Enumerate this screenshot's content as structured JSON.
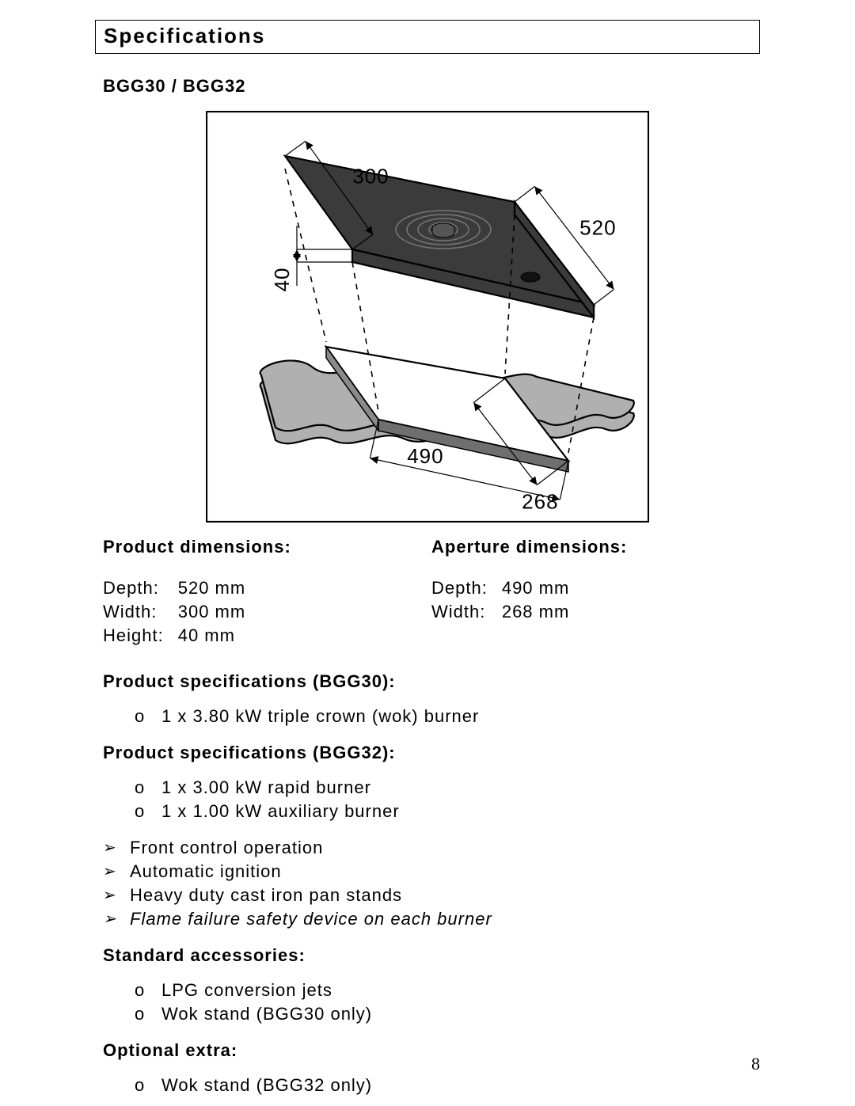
{
  "page_number": "8",
  "header": {
    "title": "Specifications"
  },
  "model": "BGG30 / BGG32",
  "diagram": {
    "dim_300": "300",
    "dim_520": "520",
    "dim_40": "40",
    "dim_490": "490",
    "dim_268": "268",
    "colors": {
      "stroke": "#000000",
      "surface_fill": "#3b3b3b",
      "counter_fill": "#b0b0b0",
      "background": "#ffffff"
    },
    "line_width_thin": 1.2,
    "line_width_bold": 2.2
  },
  "product_dimensions": {
    "title": "Product dimensions:",
    "rows": [
      {
        "label": "Depth:",
        "value": "520 mm"
      },
      {
        "label": "Width:",
        "value": "300 mm"
      },
      {
        "label": "Height:",
        "value": " 40 mm"
      }
    ]
  },
  "aperture_dimensions": {
    "title": "Aperture dimensions:",
    "rows": [
      {
        "label": "Depth:",
        "value": "490 mm"
      },
      {
        "label": "Width:",
        "value": "268 mm"
      }
    ]
  },
  "spec_bgg30": {
    "title": "Product specifications (BGG30):",
    "items": [
      "1 x 3.80 kW triple crown (wok) burner"
    ]
  },
  "spec_bgg32": {
    "title": "Product specifications (BGG32):",
    "items": [
      "1 x 3.00 kW rapid burner",
      "1 x 1.00 kW auxiliary burner"
    ]
  },
  "features": [
    {
      "text": "Front control operation",
      "italic": false
    },
    {
      "text": "Automatic ignition",
      "italic": false
    },
    {
      "text": "Heavy duty cast iron pan stands",
      "italic": false
    },
    {
      "text": "Flame failure safety device on each burner",
      "italic": true
    }
  ],
  "standard_accessories": {
    "title": "Standard accessories:",
    "items": [
      "LPG conversion jets",
      "Wok stand (BGG30 only)"
    ]
  },
  "optional_extra": {
    "title": "Optional extra:",
    "items": [
      "Wok stand (BGG32 only)"
    ]
  }
}
